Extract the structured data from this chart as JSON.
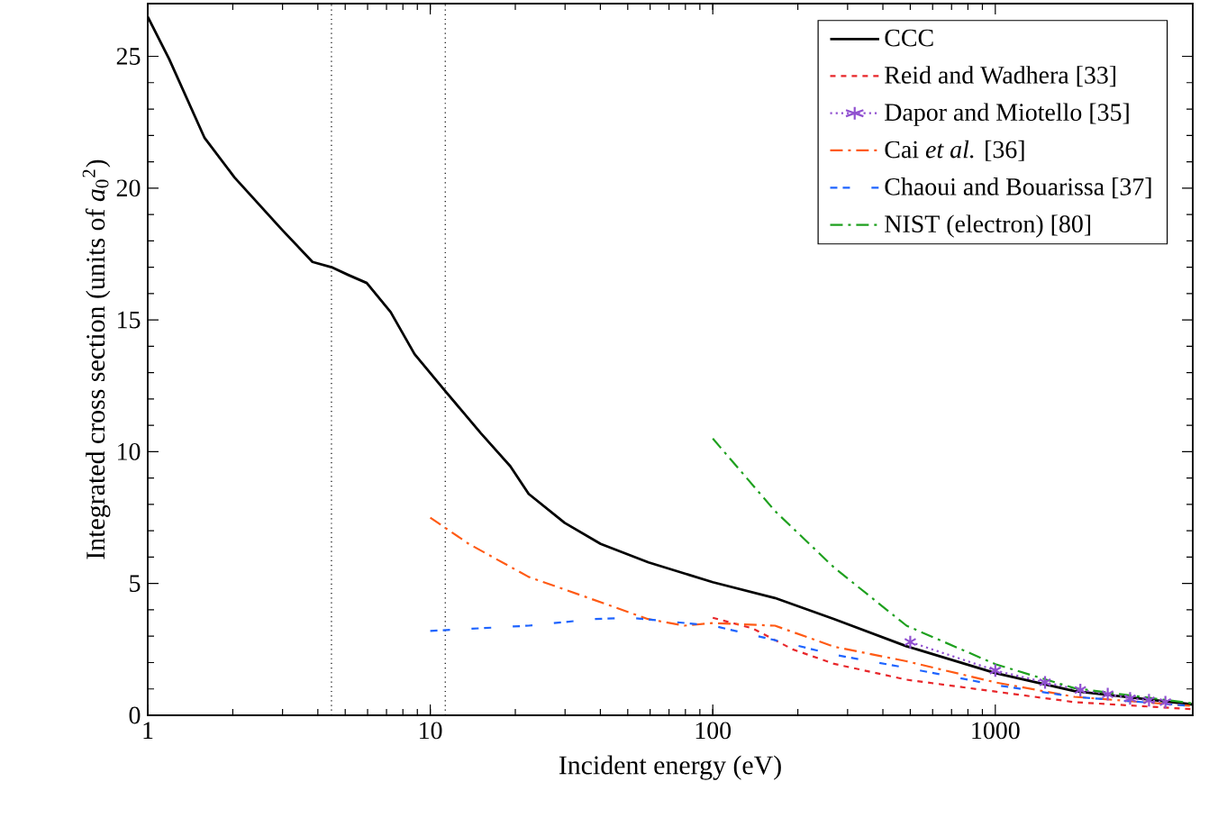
{
  "chart_data": {
    "type": "line",
    "xlabel": "Incident energy (eV)",
    "ylabel": "Integrated cross section (units of *a*$_{0}$$^{2}$)",
    "log": "x",
    "grid": false,
    "legend": "top right",
    "xlim": [
      1,
      5000
    ],
    "xticks": [
      1,
      10,
      100,
      1000
    ],
    "ylim": [
      0,
      27
    ],
    "yticks": [
      0,
      5,
      10,
      15,
      20,
      25
    ],
    "ref_lines": [
      {
        "axis": "x",
        "value": 4.47,
        "color": "#000000",
        "line_style": "dotted"
      },
      {
        "axis": "x",
        "value": 11.3,
        "color": "#000000",
        "line_style": "dotted"
      }
    ],
    "series": [
      {
        "name": "CCC",
        "color": "#000000",
        "line_style": "solid",
        "marker": "none",
        "x": [
          1,
          1.19,
          1.59,
          2.03,
          3.0,
          3.83,
          4.47,
          5.14,
          5.96,
          7.24,
          8.8,
          11.3,
          15.1,
          19.2,
          22.3,
          29.9,
          40.1,
          59.2,
          100,
          166,
          269,
          485,
          1000,
          1905,
          5000
        ],
        "values": [
          26.5,
          24.9,
          21.9,
          20.4,
          18.4,
          17.2,
          17.0,
          16.7,
          16.4,
          15.3,
          13.7,
          12.3,
          10.7,
          9.45,
          8.4,
          7.3,
          6.5,
          5.8,
          5.05,
          4.45,
          3.65,
          2.62,
          1.6,
          0.92,
          0.41
        ]
      },
      {
        "name": "Reid and Wadhera [33]",
        "color": "#e8262a",
        "line_style": "dashed",
        "marker": "none",
        "x": [
          100,
          138,
          192,
          269,
          485,
          1000,
          1905,
          5000
        ],
        "values": [
          3.7,
          3.3,
          2.5,
          1.95,
          1.35,
          0.9,
          0.5,
          0.23
        ]
      },
      {
        "name": "Dapor and Miotello [35]",
        "color": "#9050d0",
        "line_style": "dotted",
        "marker": "cross",
        "x": [
          500,
          1000,
          1500,
          2000,
          2500,
          3000,
          3500,
          4000
        ],
        "values": [
          2.78,
          1.7,
          1.25,
          0.96,
          0.8,
          0.64,
          0.57,
          0.5
        ]
      },
      {
        "name": "Cai *et al.* [36]",
        "color": "#ff5a14",
        "line_style": "dashdot",
        "marker": "none",
        "x": [
          10,
          13.7,
          22.3,
          36.4,
          59,
          79.4,
          100,
          166,
          269,
          485,
          1000,
          1905,
          5000
        ],
        "values": [
          7.5,
          6.5,
          5.25,
          4.45,
          3.65,
          3.4,
          3.5,
          3.4,
          2.6,
          2.05,
          1.25,
          0.7,
          0.35
        ]
      },
      {
        "name": "Chaoui and Bouarissa [37]",
        "color": "#1e64ff",
        "line_style": "loosely dashed",
        "marker": "none",
        "x": [
          10,
          22.3,
          38,
          51,
          100,
          166,
          269,
          485,
          1000,
          1905,
          5000
        ],
        "values": [
          3.2,
          3.4,
          3.65,
          3.7,
          3.4,
          2.85,
          2.3,
          1.8,
          1.15,
          0.7,
          0.35
        ]
      },
      {
        "name": "NIST (electron) [80]",
        "color": "#1ea01e",
        "line_style": "dashdot",
        "marker": "none",
        "x": [
          100,
          166,
          269,
          485,
          1000,
          1905,
          5000
        ],
        "values": [
          10.5,
          7.75,
          5.6,
          3.4,
          1.94,
          1.03,
          0.45
        ]
      }
    ]
  }
}
